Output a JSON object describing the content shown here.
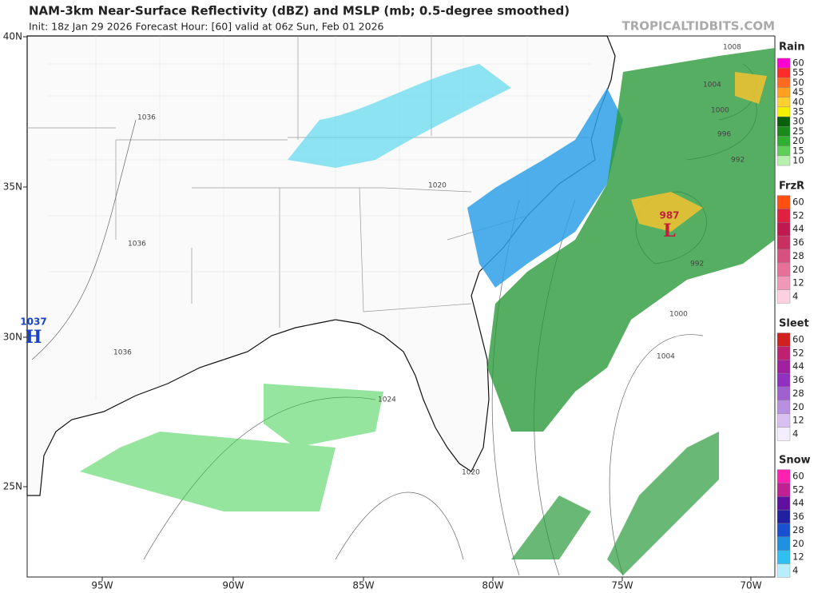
{
  "header": {
    "title": "NAM-3km Near-Surface Reflectivity (dBZ) and MSLP (mb; 0.5-degree smoothed)",
    "subtitle": "Init: 18z Jan 29 2026   Forecast Hour: [60]   valid at 06z Sun, Feb 01 2026",
    "site": "TROPICALTIDBITS.COM"
  },
  "map": {
    "lat_labels": [
      "40N",
      "35N",
      "30N",
      "25N"
    ],
    "lon_labels": [
      "95W",
      "90W",
      "85W",
      "80W",
      "75W",
      "70W"
    ],
    "isobar_labels": [
      "1008",
      "1004",
      "1000",
      "996",
      "992",
      "1036",
      "1036",
      "1036",
      "1020",
      "1020",
      "1024",
      "1000",
      "1004",
      "992"
    ],
    "pressure_centers": [
      {
        "value": "1037",
        "symbol": "H"
      },
      {
        "value": "987",
        "symbol": "L"
      }
    ]
  },
  "legend": [
    {
      "title": "Rain",
      "ticks": [
        60,
        55,
        50,
        45,
        40,
        35,
        30,
        25,
        20,
        15,
        10
      ],
      "colors": [
        "#ff00d0",
        "#ff2a2a",
        "#ff6a20",
        "#ffa020",
        "#ffd030",
        "#f5f000",
        "#0a5f0a",
        "#1a8a1a",
        "#30b030",
        "#5fcf5a",
        "#b8f0b0"
      ]
    },
    {
      "title": "FrzR",
      "ticks": [
        60,
        52,
        44,
        36,
        28,
        20,
        12,
        4
      ],
      "colors": [
        "#ff5010",
        "#e02040",
        "#c01850",
        "#c83060",
        "#d85080",
        "#e87098",
        "#f098b8",
        "#fcd0e0"
      ]
    },
    {
      "title": "Sleet",
      "ticks": [
        60,
        52,
        44,
        36,
        28,
        20,
        12,
        4
      ],
      "colors": [
        "#d02020",
        "#c02070",
        "#a020a0",
        "#9030c0",
        "#a060d0",
        "#b890e0",
        "#d8c0f0",
        "#f4eefc"
      ]
    },
    {
      "title": "Snow",
      "ticks": [
        60,
        52,
        44,
        36,
        28,
        20,
        12,
        4
      ],
      "colors": [
        "#ff20b0",
        "#c02090",
        "#6010a0",
        "#2020a0",
        "#1850d0",
        "#2090e0",
        "#30c0f0",
        "#b8eefc"
      ]
    }
  ]
}
